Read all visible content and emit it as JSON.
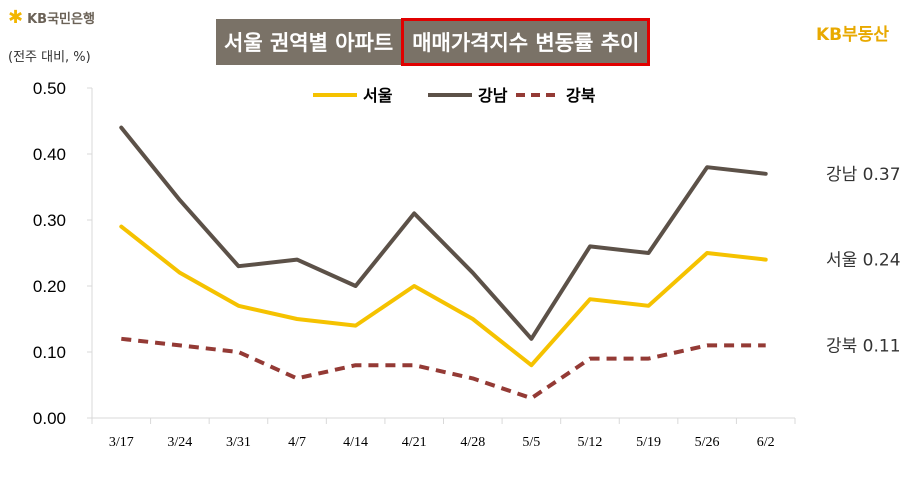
{
  "header": {
    "bank_logo": "KB국민은행",
    "unit_label": "(전주 대비, %)",
    "title_part1": "서울 권역별 아파트",
    "title_part2": "매매가격지수 변동률 추이",
    "brand_logo": "KB부동산"
  },
  "chart_data": {
    "type": "line",
    "title": "서울 권역별 아파트 매매가격지수 변동률 추이",
    "ylabel": "(전주 대비, %)",
    "categories": [
      "3/17",
      "3/24",
      "3/31",
      "4/7",
      "4/14",
      "4/21",
      "4/28",
      "5/5",
      "5/12",
      "5/19",
      "5/26",
      "6/2"
    ],
    "ylim": [
      0,
      0.5
    ],
    "yticks": [
      "0.00",
      "0.10",
      "0.20",
      "0.30",
      "0.40",
      "0.50"
    ],
    "grid": false,
    "legend_position": "top-center",
    "series": [
      {
        "name": "서울",
        "color": "#f5c200",
        "style": "solid",
        "values": [
          0.29,
          0.22,
          0.17,
          0.15,
          0.14,
          0.2,
          0.15,
          0.08,
          0.18,
          0.17,
          0.25,
          0.24
        ],
        "end_label": "서울 0.24"
      },
      {
        "name": "강남",
        "color": "#5c5148",
        "style": "solid",
        "values": [
          0.44,
          0.33,
          0.23,
          0.24,
          0.2,
          0.31,
          0.22,
          0.12,
          0.26,
          0.25,
          0.38,
          0.37
        ],
        "end_label": "강남 0.37"
      },
      {
        "name": "강북",
        "color": "#943a35",
        "style": "dashed",
        "values": [
          0.12,
          0.11,
          0.1,
          0.06,
          0.08,
          0.08,
          0.06,
          0.03,
          0.09,
          0.09,
          0.11,
          0.11
        ],
        "end_label": "강북 0.11"
      }
    ]
  }
}
